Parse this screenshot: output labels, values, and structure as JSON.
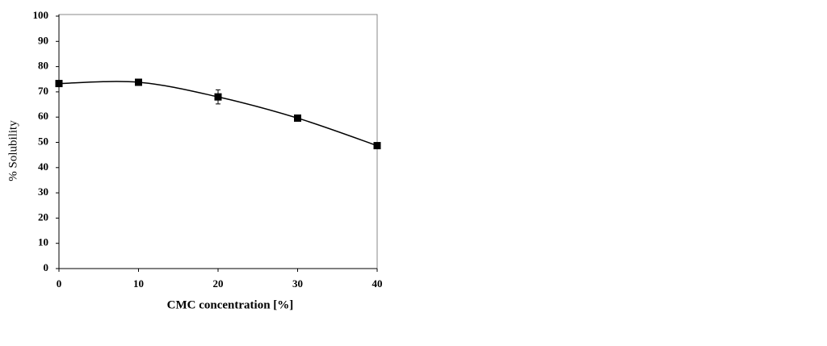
{
  "chart_data": {
    "type": "line",
    "x_label": "CMC concentration [%]",
    "y_label": "% Solubility",
    "x": [
      0,
      10,
      20,
      30,
      40
    ],
    "series": [
      {
        "name": "Solubility",
        "color": "#000000",
        "values": [
          73.3,
          73.8,
          68,
          59.6,
          48.7
        ],
        "errors": [
          0.5,
          0.5,
          2.8,
          1,
          0.5
        ]
      }
    ],
    "xlim": [
      0,
      40
    ],
    "xticks": [
      0,
      10,
      20,
      30,
      40
    ],
    "ylim": [
      0,
      100
    ],
    "yticks": [
      0,
      10,
      20,
      30,
      40,
      50,
      60,
      70,
      80,
      90,
      100
    ],
    "smooth": true
  }
}
